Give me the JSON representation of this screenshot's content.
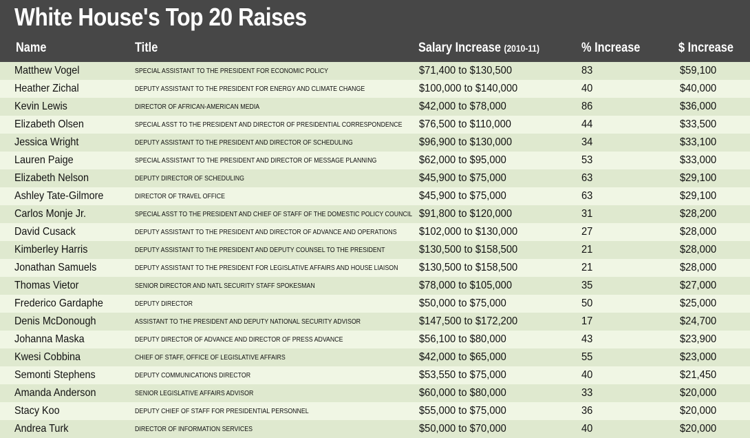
{
  "chart_data": {
    "type": "table",
    "title": "White House's Top 20 Raises",
    "columns": {
      "name": "Name",
      "title": "Title",
      "salary": "Salary Increase",
      "salary_sub": "(2010-11)",
      "pct": "% Increase",
      "dollar": "$ Increase"
    },
    "rows": [
      {
        "name": "Matthew Vogel",
        "title": "SPECIAL ASSISTANT TO THE PRESIDENT FOR ECONOMIC POLICY",
        "salary": "$71,400 to $130,500",
        "pct": "83",
        "dollar": "$59,100"
      },
      {
        "name": "Heather Zichal",
        "title": "DEPUTY ASSISTANT TO THE PRESIDENT FOR ENERGY AND CLIMATE CHANGE",
        "salary": "$100,000 to $140,000",
        "pct": "40",
        "dollar": "$40,000"
      },
      {
        "name": "Kevin Lewis",
        "title": "DIRECTOR OF AFRICAN-AMERICAN MEDIA",
        "salary": "$42,000 to $78,000",
        "pct": "86",
        "dollar": "$36,000"
      },
      {
        "name": "Elizabeth Olsen",
        "title": "SPECIAL ASST TO THE PRESIDENT AND DIRECTOR OF PRESIDENTIAL CORRESPONDENCE",
        "salary": "$76,500 to $110,000",
        "pct": "44",
        "dollar": "$33,500"
      },
      {
        "name": "Jessica Wright",
        "title": "DEPUTY ASSISTANT TO THE PRESIDENT AND DIRECTOR OF SCHEDULING",
        "salary": "$96,900 to $130,000",
        "pct": "34",
        "dollar": "$33,100"
      },
      {
        "name": "Lauren Paige",
        "title": "SPECIAL ASSISTANT TO THE PRESIDENT AND DIRECTOR OF MESSAGE PLANNING",
        "salary": "$62,000 to $95,000",
        "pct": "53",
        "dollar": "$33,000"
      },
      {
        "name": "Elizabeth Nelson",
        "title": "DEPUTY DIRECTOR OF SCHEDULING",
        "salary": "$45,900 to $75,000",
        "pct": "63",
        "dollar": "$29,100"
      },
      {
        "name": "Ashley Tate-Gilmore",
        "title": "DIRECTOR OF TRAVEL OFFICE",
        "salary": "$45,900 to $75,000",
        "pct": "63",
        "dollar": "$29,100"
      },
      {
        "name": "Carlos Monje Jr.",
        "title": "SPECIAL ASST TO THE PRESIDENT AND CHIEF OF STAFF OF THE DOMESTIC POLICY COUNCIL",
        "salary": "$91,800 to $120,000",
        "pct": "31",
        "dollar": "$28,200"
      },
      {
        "name": "David Cusack",
        "title": "DEPUTY ASSISTANT TO THE PRESIDENT AND DIRECTOR OF ADVANCE AND OPERATIONS",
        "salary": "$102,000 to $130,000",
        "pct": "27",
        "dollar": "$28,000"
      },
      {
        "name": "Kimberley Harris",
        "title": "DEPUTY ASSISTANT TO THE PRESIDENT AND DEPUTY COUNSEL TO THE PRESIDENT",
        "salary": "$130,500 to $158,500",
        "pct": "21",
        "dollar": "$28,000"
      },
      {
        "name": "Jonathan Samuels",
        "title": "DEPUTY ASSISTANT TO THE PRESIDENT FOR LEGISLATIVE AFFAIRS AND HOUSE LIAISON",
        "salary": "$130,500 to $158,500",
        "pct": "21",
        "dollar": "$28,000"
      },
      {
        "name": "Thomas Vietor",
        "title": "SENIOR DIRECTOR AND NATL SECURITY STAFF SPOKESMAN",
        "salary": "$78,000 to $105,000",
        "pct": "35",
        "dollar": "$27,000"
      },
      {
        "name": "Frederico Gardaphe",
        "title": "DEPUTY DIRECTOR",
        "salary": "$50,000 to $75,000",
        "pct": "50",
        "dollar": "$25,000"
      },
      {
        "name": "Denis McDonough",
        "title": "ASSISTANT TO THE PRESIDENT AND DEPUTY NATIONAL SECURITY ADVISOR",
        "salary": "$147,500 to $172,200",
        "pct": "17",
        "dollar": "$24,700"
      },
      {
        "name": "Johanna Maska",
        "title": "DEPUTY DIRECTOR OF ADVANCE AND DIRECTOR OF PRESS ADVANCE",
        "salary": "$56,100 to $80,000",
        "pct": "43",
        "dollar": "$23,900"
      },
      {
        "name": "Kwesi Cobbina",
        "title": "CHIEF OF STAFF, OFFICE OF LEGISLATIVE AFFAIRS",
        "salary": "$42,000 to $65,000",
        "pct": "55",
        "dollar": "$23,000"
      },
      {
        "name": "Semonti Stephens",
        "title": "DEPUTY COMMUNICATIONS DIRECTOR",
        "salary": "$53,550 to $75,000",
        "pct": "40",
        "dollar": "$21,450"
      },
      {
        "name": "Amanda Anderson",
        "title": "SENIOR LEGISLATIVE AFFAIRS ADVISOR",
        "salary": "$60,000 to $80,000",
        "pct": "33",
        "dollar": "$20,000"
      },
      {
        "name": "Stacy Koo",
        "title": "DEPUTY CHIEF OF STAFF FOR PRESIDENTIAL PERSONNEL",
        "salary": "$55,000 to $75,000",
        "pct": "36",
        "dollar": "$20,000"
      },
      {
        "name": "Andrea Turk",
        "title": "DIRECTOR OF INFORMATION SERVICES",
        "salary": "$50,000 to $70,000",
        "pct": "40",
        "dollar": "$20,000"
      }
    ]
  },
  "colors": {
    "background": "#474747",
    "header_text": "#ffffff",
    "row_odd": "#dfe9cf",
    "row_even": "#f0f6e4",
    "cell_text": "#111111"
  }
}
